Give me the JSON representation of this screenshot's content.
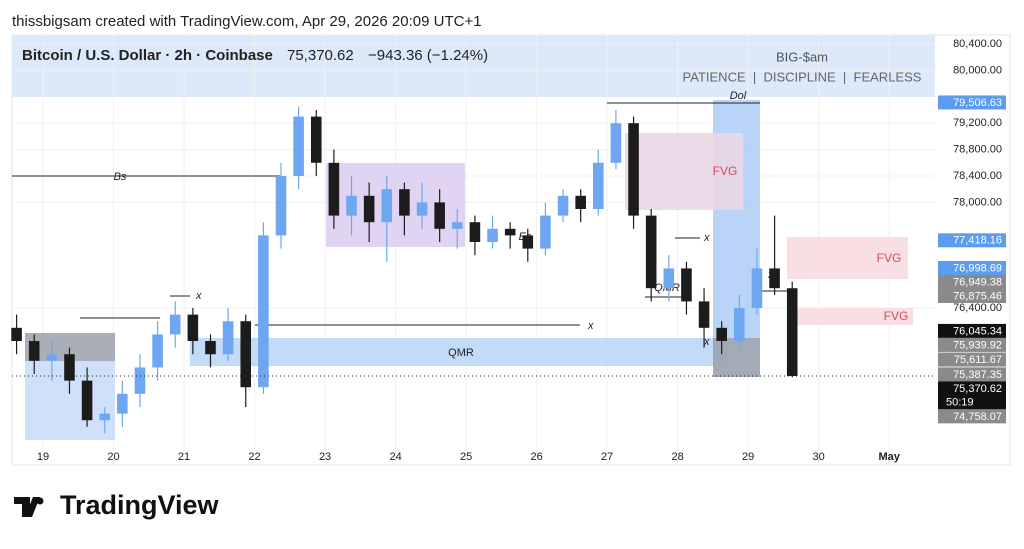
{
  "header": {
    "attribution": "thissbigsam created with TradingView.com, Apr 29, 2026 20:09 UTC+1"
  },
  "chart_data": {
    "type": "candlestick",
    "title": "Bitcoin / U.S. Dollar · 2h · Coinbase",
    "last_price": "75,370.62",
    "change": "−943.36 (−1.24%)",
    "watermark": "BIG-$am",
    "tagline": "PATIENCE  |  DISCIPLINE  |  FEARLESS",
    "up_color": "#6ea6f2",
    "down_color": "#1c1c1c",
    "x": [
      18.625,
      18.875,
      19.125,
      19.375,
      19.625,
      19.875,
      20.125,
      20.375,
      20.625,
      20.875,
      21.125,
      21.375,
      21.625,
      21.875,
      22.125,
      22.375,
      22.625,
      22.875,
      23.125,
      23.375,
      23.625,
      23.875,
      24.125,
      24.375,
      24.625,
      24.875,
      25.125,
      25.375,
      25.625,
      25.875,
      26.125,
      26.375,
      26.625,
      26.875,
      27.125,
      27.375,
      27.625,
      27.875,
      28.125,
      28.375,
      28.625,
      28.875,
      29.125,
      29.375,
      29.625
    ],
    "open": [
      76100,
      75900,
      75600,
      75700,
      75300,
      74700,
      74800,
      75100,
      75500,
      76000,
      76300,
      75900,
      75700,
      76200,
      75200,
      77500,
      78400,
      79300,
      78600,
      77800,
      78100,
      77700,
      78200,
      77800,
      78000,
      77600,
      77700,
      77400,
      77600,
      77500,
      77300,
      77800,
      78100,
      77900,
      78600,
      79200,
      77800,
      76700,
      77000,
      76500,
      76100,
      75900,
      76400,
      77000,
      76700
    ],
    "high": [
      76300,
      76000,
      75900,
      75800,
      75500,
      74900,
      75300,
      75700,
      76200,
      76500,
      76400,
      76000,
      76400,
      76300,
      77700,
      78600,
      79450,
      79400,
      78800,
      78400,
      78300,
      78400,
      78300,
      78300,
      78200,
      77900,
      77800,
      77800,
      77700,
      77600,
      78000,
      78200,
      78200,
      78800,
      79400,
      79300,
      77900,
      77200,
      77100,
      76700,
      76200,
      76600,
      77300,
      77800,
      76800
    ],
    "low": [
      75700,
      75400,
      75300,
      75100,
      74600,
      74500,
      74600,
      74900,
      75300,
      75800,
      75700,
      75500,
      75600,
      74900,
      75100,
      77300,
      78200,
      78400,
      77600,
      77500,
      77400,
      77100,
      77500,
      77600,
      77400,
      77300,
      77200,
      77300,
      77300,
      77100,
      77200,
      77700,
      77700,
      77800,
      78500,
      77600,
      76500,
      76500,
      76300,
      75800,
      75700,
      75800,
      76300,
      76600,
      75350
    ],
    "close": [
      75900,
      75600,
      75700,
      75300,
      74700,
      74800,
      75100,
      75500,
      76000,
      76300,
      75900,
      75700,
      76200,
      75200,
      77500,
      78400,
      79300,
      78600,
      77800,
      78100,
      77700,
      78200,
      77800,
      78000,
      77600,
      77700,
      77400,
      77600,
      77500,
      77300,
      77800,
      78100,
      77900,
      78600,
      79200,
      77800,
      76700,
      77000,
      76500,
      76100,
      75900,
      76400,
      77000,
      76700,
      75370.62
    ],
    "xlim": [
      18.56,
      31.65
    ],
    "xticks": [
      19,
      20,
      21,
      22,
      23,
      24,
      25,
      26,
      27,
      28,
      29,
      30,
      {
        "value": 31,
        "label": "May"
      }
    ],
    "ylim": [
      74355,
      80536
    ],
    "yticks": [
      {
        "value": 80400,
        "label": "80,400.00"
      },
      {
        "value": 80000,
        "label": "80,000.00"
      },
      {
        "value": 79200,
        "label": "79,200.00"
      },
      {
        "value": 78800,
        "label": "78,800.00"
      },
      {
        "value": 78400,
        "label": "78,400.00"
      },
      {
        "value": 78000,
        "label": "78,000.00"
      },
      {
        "value": 76400,
        "label": "76,400.00"
      }
    ],
    "grid": true,
    "price_badges": [
      {
        "value": 79506.63,
        "label": "79,506.63",
        "color": "#5b9cf0"
      },
      {
        "value": 77418.16,
        "label": "77,418.16",
        "color": "#5b9cf0"
      },
      {
        "value": 76998.69,
        "label": "76,998.69",
        "color": "#5b9cf0"
      },
      {
        "value": 76949.38,
        "label": "76,949.38",
        "color": "#8a8a8a"
      },
      {
        "value": 76875.46,
        "label": "76,875.46",
        "color": "#8a8a8a"
      },
      {
        "value": 76045.34,
        "label": "76,045.34",
        "color": "#111111"
      },
      {
        "value": 75939.92,
        "label": "75,939.92",
        "color": "#8a8a8a"
      },
      {
        "value": 75611.67,
        "label": "75,611.67",
        "color": "#8a8a8a"
      },
      {
        "value": 75387.35,
        "label": "75,387.35",
        "color": "#8a8a8a"
      },
      {
        "value": 75370.62,
        "label": "75,370.62",
        "color": "#111111"
      },
      {
        "value": 74758.07,
        "label": "74,758.07",
        "color": "#8a8a8a"
      }
    ],
    "countdown": "50:19",
    "annotations": {
      "bs": "Bs",
      "x": "x",
      "es": "Es",
      "qmr": "QMR",
      "dol": "Dol",
      "fvg": "FVG"
    }
  },
  "footer": {
    "brand": "TradingView"
  }
}
